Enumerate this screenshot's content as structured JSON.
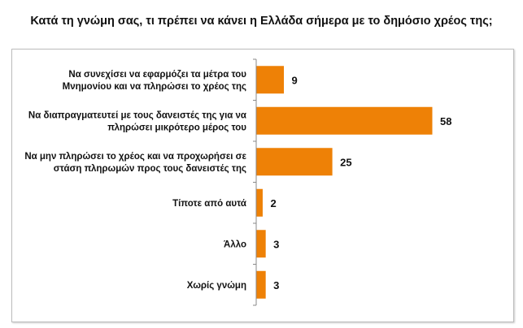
{
  "chart_data": {
    "type": "bar",
    "orientation": "horizontal",
    "title": "Κατά τη γνώμη σας, τι πρέπει να κάνει η Ελλάδα σήμερα με το δημόσιο χρέος της;",
    "categories": [
      [
        "Να συνεχίσει να εφαρμόζει τα μέτρα του",
        "Μνημονίου και να πληρώσει το χρέος της"
      ],
      [
        "Να διαπραγματευτεί με τους δανειστές της για να",
        "πληρώσει μικρότερο μέρος του"
      ],
      [
        "Να μην πληρώσει το χρέος και να προχωρήσει σε",
        "στάση πληρωμών προς τους δανειστές της"
      ],
      [
        "Τίποτε από αυτά"
      ],
      [
        "Άλλο"
      ],
      [
        "Χωρίς γνώμη"
      ]
    ],
    "values": [
      9,
      58,
      25,
      2,
      3,
      3
    ],
    "data_labels": [
      "9",
      "58",
      "25",
      "2",
      "3",
      "3"
    ],
    "xlim": [
      0,
      60
    ],
    "grid": false,
    "legend": "none",
    "colors": {
      "bar": "#EE8106",
      "axis": "#888888"
    }
  }
}
